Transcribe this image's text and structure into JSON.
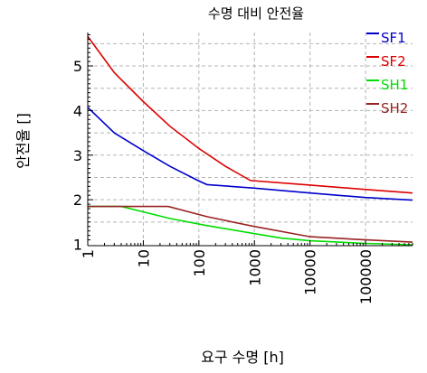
{
  "chart_data": {
    "type": "line",
    "title": "수명 대비 안전율",
    "xlabel": "요구 수명 [h]",
    "ylabel": "안전율 []",
    "xscale": "log",
    "xlim": [
      1,
      700000
    ],
    "ylim": [
      0.97,
      5.75
    ],
    "grid": true,
    "legend_position": "top-right",
    "x_ticks": [
      {
        "value": 1,
        "label": "1"
      },
      {
        "value": 10,
        "label": "10"
      },
      {
        "value": 100,
        "label": "100"
      },
      {
        "value": 1000,
        "label": "1000"
      },
      {
        "value": 10000,
        "label": "10000"
      },
      {
        "value": 100000,
        "label": "100000"
      }
    ],
    "y_ticks": [
      {
        "value": 1,
        "label": "1"
      },
      {
        "value": 2,
        "label": "2"
      },
      {
        "value": 3,
        "label": "3"
      },
      {
        "value": 4,
        "label": "4"
      },
      {
        "value": 5,
        "label": "5"
      }
    ],
    "series": [
      {
        "name": "SF1",
        "color": "#0000cc",
        "points": [
          [
            1,
            4.07
          ],
          [
            3,
            3.5
          ],
          [
            10,
            3.1
          ],
          [
            30,
            2.75
          ],
          [
            100,
            2.42
          ],
          [
            140,
            2.34
          ],
          [
            1000,
            2.26
          ],
          [
            10000,
            2.15
          ],
          [
            100000,
            2.05
          ],
          [
            700000,
            1.99
          ]
        ]
      },
      {
        "name": "SF2",
        "color": "#dd0000",
        "points": [
          [
            1,
            5.66
          ],
          [
            3,
            4.85
          ],
          [
            10,
            4.2
          ],
          [
            30,
            3.65
          ],
          [
            100,
            3.15
          ],
          [
            300,
            2.75
          ],
          [
            850,
            2.43
          ],
          [
            10000,
            2.33
          ],
          [
            100000,
            2.23
          ],
          [
            700000,
            2.15
          ]
        ]
      },
      {
        "name": "SH1",
        "color": "#00dd00",
        "points": [
          [
            1,
            1.85
          ],
          [
            4,
            1.85
          ],
          [
            30,
            1.58
          ],
          [
            140,
            1.42
          ],
          [
            1000,
            1.24
          ],
          [
            3000,
            1.14
          ],
          [
            10000,
            1.08
          ],
          [
            100000,
            1.02
          ],
          [
            700000,
            0.99
          ]
        ]
      },
      {
        "name": "SH2",
        "color": "#992222",
        "points": [
          [
            1,
            1.85
          ],
          [
            28,
            1.85
          ],
          [
            140,
            1.62
          ],
          [
            1000,
            1.4
          ],
          [
            10000,
            1.17
          ],
          [
            100000,
            1.1
          ],
          [
            700000,
            1.05
          ]
        ]
      }
    ]
  }
}
